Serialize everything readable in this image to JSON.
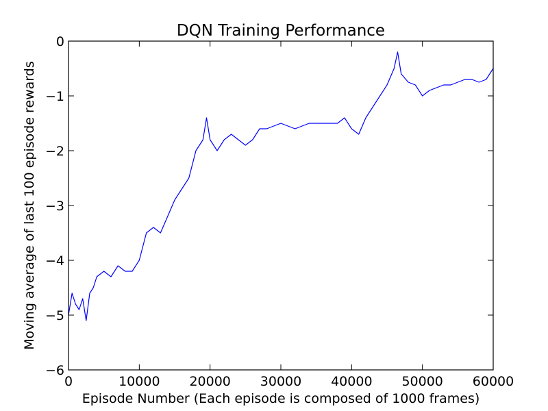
{
  "chart_data": {
    "type": "line",
    "title": "DQN Training Performance",
    "xlabel": "Episode Number (Each episode is composed of 1000 frames)",
    "ylabel": "Moving average of last 100 episode rewards",
    "xlim": [
      0,
      60000
    ],
    "ylim": [
      -6,
      0
    ],
    "xticks": [
      0,
      10000,
      20000,
      30000,
      40000,
      50000,
      60000
    ],
    "xtick_labels": [
      "0",
      "10000",
      "20000",
      "30000",
      "40000",
      "50000",
      "60000"
    ],
    "yticks": [
      0,
      -1,
      -2,
      -3,
      -4,
      -5,
      -6
    ],
    "ytick_labels": [
      "0",
      "−1",
      "−2",
      "−3",
      "−4",
      "−5",
      "−6"
    ],
    "grid": false,
    "line_color": "#0000ff",
    "series": [
      {
        "x": [
          0,
          500,
          1000,
          1500,
          2000,
          2500,
          3000,
          3500,
          4000,
          5000,
          6000,
          7000,
          8000,
          9000,
          10000,
          11000,
          12000,
          13000,
          14000,
          15000,
          16000,
          17000,
          18000,
          19000,
          19500,
          20000,
          21000,
          22000,
          23000,
          24000,
          25000,
          26000,
          27000,
          28000,
          30000,
          32000,
          34000,
          36000,
          37000,
          38000,
          39000,
          40000,
          41000,
          42000,
          43000,
          44000,
          45000,
          46000,
          46500,
          47000,
          48000,
          49000,
          50000,
          51000,
          52000,
          53000,
          54000,
          55000,
          56000,
          57000,
          58000,
          59000,
          60000
        ],
        "values": [
          -5.0,
          -4.6,
          -4.8,
          -4.9,
          -4.7,
          -5.1,
          -4.6,
          -4.5,
          -4.3,
          -4.2,
          -4.3,
          -4.1,
          -4.2,
          -4.2,
          -4.0,
          -3.5,
          -3.4,
          -3.5,
          -3.2,
          -2.9,
          -2.7,
          -2.5,
          -2.0,
          -1.8,
          -1.4,
          -1.8,
          -2.0,
          -1.8,
          -1.7,
          -1.8,
          -1.9,
          -1.8,
          -1.6,
          -1.6,
          -1.5,
          -1.6,
          -1.5,
          -1.5,
          -1.5,
          -1.5,
          -1.4,
          -1.6,
          -1.7,
          -1.4,
          -1.2,
          -1.0,
          -0.8,
          -0.5,
          -0.2,
          -0.6,
          -0.75,
          -0.8,
          -1.0,
          -0.9,
          -0.85,
          -0.8,
          -0.8,
          -0.75,
          -0.7,
          -0.7,
          -0.75,
          -0.7,
          -0.5
        ]
      }
    ]
  }
}
